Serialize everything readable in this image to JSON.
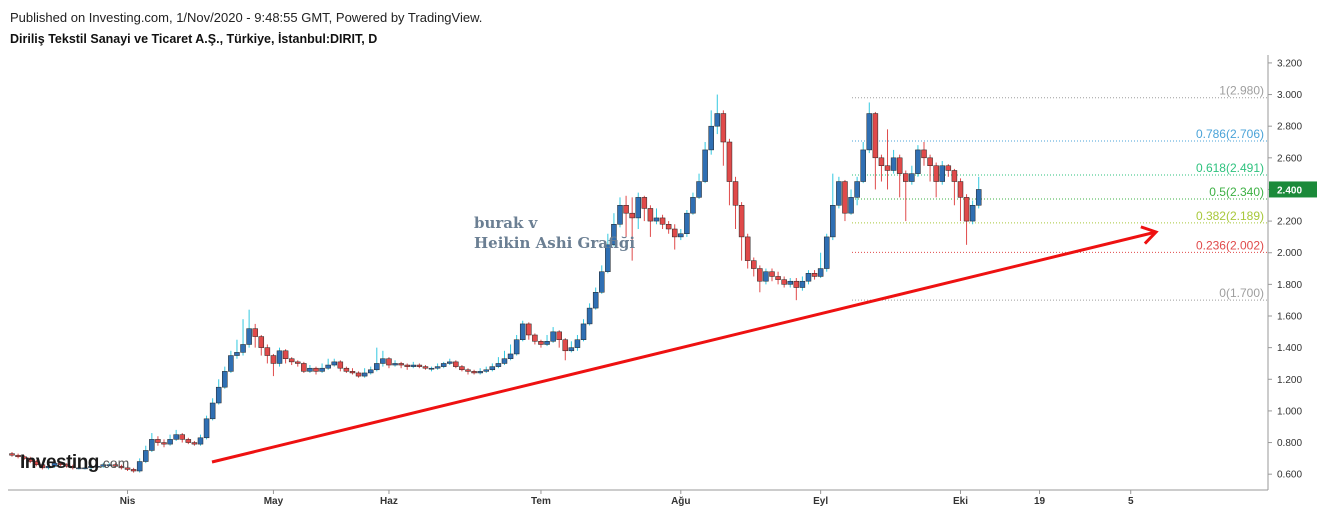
{
  "header": {
    "published": "Published on Investing.com, 1/Nov/2020 - 9:48:55 GMT, Powered by TradingView.",
    "instrument": "Diriliş Tekstil Sanayi ve Ticaret A.Ş., Türkiye, İstanbul:DIRIT, D"
  },
  "logo": {
    "main": "Investing",
    "suffix": ".com"
  },
  "annotation": {
    "line1": "burak v",
    "line2": "Heikin Ashi Grafiği"
  },
  "colors": {
    "up": "#2f6fb3",
    "down": "#e04a4a",
    "wick_up": "#32c8e0",
    "wick_down": "#e04a4a",
    "trendline": "#ee1111",
    "grid": "#e6e6e6",
    "last_price_bg": "#1b8a3a"
  },
  "chart_data": {
    "type": "candlestick",
    "style": "Heikin Ashi",
    "ylim": [
      0.5,
      3.25
    ],
    "y_ticks": [
      "0.600",
      "0.800",
      "1.000",
      "1.200",
      "1.400",
      "1.600",
      "1.800",
      "2.000",
      "2.200",
      "2.400",
      "2.600",
      "2.800",
      "3.000",
      "3.200"
    ],
    "x_tick_labels": [
      "Nis",
      "May",
      "Haz",
      "Tem",
      "Ağu",
      "Eyl",
      "Eki",
      "19",
      "5"
    ],
    "last_price": "2.400",
    "fib_levels": [
      {
        "label": "1(2.980)",
        "value": 2.98,
        "color": "#9e9e9e"
      },
      {
        "label": "0.786(2.706)",
        "value": 2.706,
        "color": "#4aa3d8"
      },
      {
        "label": "0.618(2.491)",
        "value": 2.491,
        "color": "#2ec27e"
      },
      {
        "label": "0.5(2.340)",
        "value": 2.34,
        "color": "#3cb043"
      },
      {
        "label": "0.382(2.189)",
        "value": 2.189,
        "color": "#a8c83a"
      },
      {
        "label": "0.236(2.002)",
        "value": 2.002,
        "color": "#e04a4a"
      },
      {
        "label": "0(1.700)",
        "value": 1.7,
        "color": "#9e9e9e"
      }
    ],
    "trendline": {
      "from": [
        0,
        0.63
      ],
      "to": [
        42,
        2.15
      ]
    },
    "candles": [
      [
        0.73,
        0.72,
        0.74,
        0.71
      ],
      [
        0.72,
        0.71,
        0.73,
        0.7
      ],
      [
        0.71,
        0.7,
        0.72,
        0.69
      ],
      [
        0.7,
        0.68,
        0.71,
        0.67
      ],
      [
        0.68,
        0.66,
        0.69,
        0.65
      ],
      [
        0.66,
        0.64,
        0.67,
        0.63
      ],
      [
        0.64,
        0.65,
        0.68,
        0.63
      ],
      [
        0.65,
        0.67,
        0.69,
        0.64
      ],
      [
        0.67,
        0.66,
        0.68,
        0.65
      ],
      [
        0.66,
        0.65,
        0.67,
        0.64
      ],
      [
        0.65,
        0.64,
        0.66,
        0.63
      ],
      [
        0.64,
        0.64,
        0.65,
        0.63
      ],
      [
        0.64,
        0.64,
        0.65,
        0.63
      ],
      [
        0.64,
        0.65,
        0.66,
        0.63
      ],
      [
        0.65,
        0.65,
        0.66,
        0.64
      ],
      [
        0.65,
        0.66,
        0.67,
        0.64
      ],
      [
        0.66,
        0.66,
        0.67,
        0.65
      ],
      [
        0.66,
        0.65,
        0.67,
        0.64
      ],
      [
        0.65,
        0.64,
        0.66,
        0.63
      ],
      [
        0.64,
        0.63,
        0.65,
        0.62
      ],
      [
        0.63,
        0.62,
        0.64,
        0.61
      ],
      [
        0.62,
        0.68,
        0.7,
        0.61
      ],
      [
        0.68,
        0.75,
        0.78,
        0.67
      ],
      [
        0.75,
        0.82,
        0.86,
        0.74
      ],
      [
        0.82,
        0.8,
        0.84,
        0.78
      ],
      [
        0.8,
        0.79,
        0.82,
        0.77
      ],
      [
        0.79,
        0.82,
        0.85,
        0.78
      ],
      [
        0.82,
        0.85,
        0.88,
        0.81
      ],
      [
        0.85,
        0.82,
        0.86,
        0.8
      ],
      [
        0.82,
        0.8,
        0.83,
        0.79
      ],
      [
        0.8,
        0.79,
        0.81,
        0.78
      ],
      [
        0.79,
        0.83,
        0.85,
        0.78
      ],
      [
        0.83,
        0.95,
        0.97,
        0.82
      ],
      [
        0.95,
        1.05,
        1.08,
        0.94
      ],
      [
        1.05,
        1.15,
        1.2,
        1.04
      ],
      [
        1.15,
        1.25,
        1.28,
        1.14
      ],
      [
        1.25,
        1.35,
        1.38,
        1.24
      ],
      [
        1.35,
        1.37,
        1.45,
        1.33
      ],
      [
        1.37,
        1.42,
        1.58,
        1.35
      ],
      [
        1.42,
        1.52,
        1.64,
        1.4
      ],
      [
        1.52,
        1.47,
        1.55,
        1.4
      ],
      [
        1.47,
        1.4,
        1.48,
        1.35
      ],
      [
        1.4,
        1.35,
        1.42,
        1.3
      ],
      [
        1.35,
        1.3,
        1.36,
        1.22
      ],
      [
        1.3,
        1.38,
        1.4,
        1.28
      ],
      [
        1.38,
        1.33,
        1.39,
        1.3
      ],
      [
        1.33,
        1.31,
        1.34,
        1.29
      ],
      [
        1.31,
        1.3,
        1.32,
        1.28
      ],
      [
        1.3,
        1.25,
        1.31,
        1.24
      ],
      [
        1.25,
        1.27,
        1.29,
        1.24
      ],
      [
        1.27,
        1.25,
        1.28,
        1.23
      ],
      [
        1.25,
        1.27,
        1.3,
        1.24
      ],
      [
        1.27,
        1.29,
        1.33,
        1.26
      ],
      [
        1.29,
        1.31,
        1.33,
        1.28
      ],
      [
        1.31,
        1.27,
        1.32,
        1.25
      ],
      [
        1.27,
        1.25,
        1.28,
        1.24
      ],
      [
        1.25,
        1.24,
        1.27,
        1.23
      ],
      [
        1.24,
        1.22,
        1.25,
        1.21
      ],
      [
        1.22,
        1.24,
        1.27,
        1.21
      ],
      [
        1.24,
        1.26,
        1.28,
        1.23
      ],
      [
        1.26,
        1.3,
        1.4,
        1.25
      ],
      [
        1.3,
        1.33,
        1.38,
        1.28
      ],
      [
        1.33,
        1.29,
        1.34,
        1.27
      ],
      [
        1.29,
        1.3,
        1.32,
        1.28
      ],
      [
        1.3,
        1.29,
        1.31,
        1.27
      ],
      [
        1.29,
        1.28,
        1.3,
        1.26
      ],
      [
        1.28,
        1.29,
        1.31,
        1.27
      ],
      [
        1.29,
        1.28,
        1.3,
        1.27
      ],
      [
        1.28,
        1.27,
        1.29,
        1.26
      ],
      [
        1.27,
        1.27,
        1.28,
        1.25
      ],
      [
        1.27,
        1.28,
        1.3,
        1.26
      ],
      [
        1.28,
        1.3,
        1.31,
        1.27
      ],
      [
        1.3,
        1.31,
        1.33,
        1.29
      ],
      [
        1.31,
        1.28,
        1.32,
        1.27
      ],
      [
        1.28,
        1.26,
        1.29,
        1.25
      ],
      [
        1.26,
        1.25,
        1.27,
        1.23
      ],
      [
        1.25,
        1.24,
        1.26,
        1.23
      ],
      [
        1.24,
        1.25,
        1.27,
        1.23
      ],
      [
        1.25,
        1.26,
        1.28,
        1.24
      ],
      [
        1.26,
        1.28,
        1.3,
        1.25
      ],
      [
        1.28,
        1.3,
        1.34,
        1.27
      ],
      [
        1.3,
        1.33,
        1.38,
        1.29
      ],
      [
        1.33,
        1.36,
        1.42,
        1.32
      ],
      [
        1.36,
        1.45,
        1.48,
        1.35
      ],
      [
        1.45,
        1.55,
        1.57,
        1.44
      ],
      [
        1.55,
        1.48,
        1.56,
        1.45
      ],
      [
        1.48,
        1.44,
        1.49,
        1.42
      ],
      [
        1.44,
        1.42,
        1.45,
        1.4
      ],
      [
        1.42,
        1.44,
        1.48,
        1.41
      ],
      [
        1.44,
        1.5,
        1.53,
        1.43
      ],
      [
        1.5,
        1.45,
        1.51,
        1.4
      ],
      [
        1.45,
        1.38,
        1.46,
        1.32
      ],
      [
        1.38,
        1.4,
        1.44,
        1.37
      ],
      [
        1.4,
        1.45,
        1.48,
        1.38
      ],
      [
        1.45,
        1.55,
        1.58,
        1.44
      ],
      [
        1.55,
        1.65,
        1.68,
        1.54
      ],
      [
        1.65,
        1.75,
        1.78,
        1.64
      ],
      [
        1.75,
        1.88,
        1.92,
        1.74
      ],
      [
        1.88,
        2.05,
        2.12,
        1.87
      ],
      [
        2.05,
        2.18,
        2.25,
        2.04
      ],
      [
        2.18,
        2.3,
        2.35,
        2.16
      ],
      [
        2.3,
        2.25,
        2.36,
        2.1
      ],
      [
        2.25,
        2.22,
        2.35,
        1.95
      ],
      [
        2.22,
        2.35,
        2.38,
        2.15
      ],
      [
        2.35,
        2.28,
        2.36,
        2.2
      ],
      [
        2.28,
        2.2,
        2.3,
        2.1
      ],
      [
        2.2,
        2.22,
        2.28,
        2.18
      ],
      [
        2.22,
        2.18,
        2.24,
        2.15
      ],
      [
        2.18,
        2.15,
        2.2,
        2.12
      ],
      [
        2.15,
        2.1,
        2.18,
        2.02
      ],
      [
        2.1,
        2.12,
        2.15,
        2.08
      ],
      [
        2.12,
        2.25,
        2.27,
        2.1
      ],
      [
        2.25,
        2.35,
        2.38,
        2.24
      ],
      [
        2.35,
        2.45,
        2.5,
        2.34
      ],
      [
        2.45,
        2.65,
        2.7,
        2.44
      ],
      [
        2.65,
        2.8,
        2.9,
        2.62
      ],
      [
        2.8,
        2.88,
        3.0,
        2.75
      ],
      [
        2.88,
        2.7,
        2.9,
        2.55
      ],
      [
        2.7,
        2.45,
        2.72,
        2.3
      ],
      [
        2.45,
        2.3,
        2.48,
        2.15
      ],
      [
        2.3,
        2.1,
        2.32,
        1.95
      ],
      [
        2.1,
        1.95,
        2.12,
        1.9
      ],
      [
        1.95,
        1.9,
        1.97,
        1.85
      ],
      [
        1.9,
        1.82,
        1.92,
        1.75
      ],
      [
        1.82,
        1.88,
        1.9,
        1.8
      ],
      [
        1.88,
        1.85,
        1.9,
        1.82
      ],
      [
        1.85,
        1.83,
        1.88,
        1.8
      ],
      [
        1.83,
        1.8,
        1.85,
        1.78
      ],
      [
        1.8,
        1.82,
        1.84,
        1.78
      ],
      [
        1.82,
        1.78,
        1.84,
        1.7
      ],
      [
        1.78,
        1.82,
        1.85,
        1.76
      ],
      [
        1.82,
        1.87,
        1.89,
        1.8
      ],
      [
        1.87,
        1.85,
        1.89,
        1.83
      ],
      [
        1.85,
        1.9,
        2.0,
        1.84
      ],
      [
        1.9,
        2.1,
        2.12,
        1.88
      ],
      [
        2.1,
        2.3,
        2.5,
        2.08
      ],
      [
        2.3,
        2.45,
        2.48,
        2.28
      ],
      [
        2.45,
        2.25,
        2.46,
        2.2
      ],
      [
        2.25,
        2.35,
        2.4,
        2.24
      ],
      [
        2.35,
        2.45,
        2.48,
        2.3
      ],
      [
        2.45,
        2.65,
        2.7,
        2.44
      ],
      [
        2.65,
        2.88,
        2.95,
        2.63
      ],
      [
        2.88,
        2.6,
        2.89,
        2.4
      ],
      [
        2.6,
        2.55,
        2.62,
        2.45
      ],
      [
        2.55,
        2.52,
        2.78,
        2.4
      ],
      [
        2.52,
        2.6,
        2.65,
        2.5
      ],
      [
        2.6,
        2.5,
        2.62,
        2.35
      ],
      [
        2.5,
        2.45,
        2.52,
        2.2
      ],
      [
        2.45,
        2.5,
        2.55,
        2.43
      ],
      [
        2.5,
        2.65,
        2.68,
        2.48
      ],
      [
        2.65,
        2.6,
        2.7,
        2.55
      ],
      [
        2.6,
        2.55,
        2.62,
        2.45
      ],
      [
        2.55,
        2.45,
        2.57,
        2.35
      ],
      [
        2.45,
        2.55,
        2.58,
        2.43
      ],
      [
        2.55,
        2.52,
        2.56,
        2.48
      ],
      [
        2.52,
        2.45,
        2.53,
        2.3
      ],
      [
        2.45,
        2.35,
        2.47,
        2.2
      ],
      [
        2.35,
        2.2,
        2.37,
        2.05
      ],
      [
        2.2,
        2.3,
        2.33,
        2.18
      ],
      [
        2.3,
        2.4,
        2.48,
        2.28
      ]
    ]
  }
}
